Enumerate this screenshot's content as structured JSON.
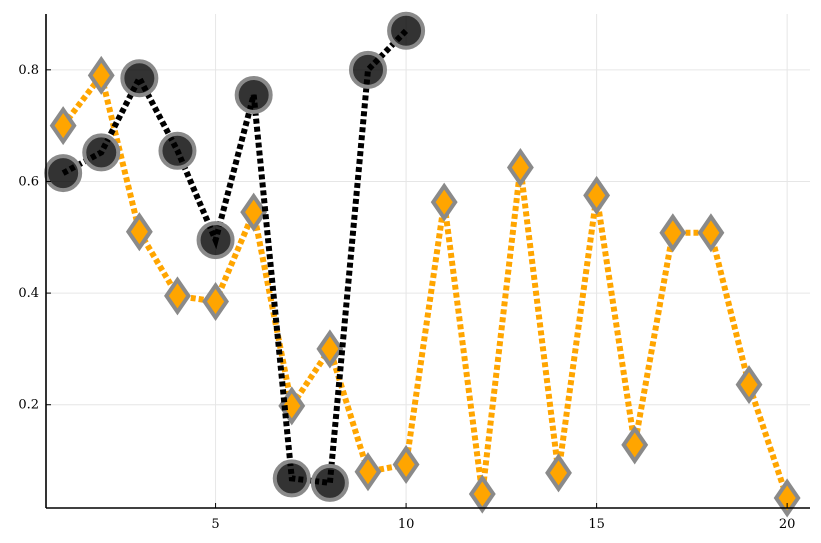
{
  "chart_data": {
    "type": "line",
    "title": "",
    "xlabel": "",
    "ylabel": "",
    "xlim": [
      0.55,
      20.6
    ],
    "ylim": [
      0.015,
      0.9
    ],
    "xticks": [
      5,
      10,
      15,
      20
    ],
    "yticks": [
      0.2,
      0.4,
      0.6,
      0.8
    ],
    "xtick_labels": [
      "5",
      "10",
      "15",
      "20"
    ],
    "ytick_labels": [
      "0.2",
      "0.4",
      "0.6",
      "0.8"
    ],
    "grid": true,
    "legend": "none",
    "series": [
      {
        "color": "#ffa500",
        "line_style": "dotted",
        "marker": "diamond",
        "x": [
          1,
          2,
          3,
          4,
          5,
          6,
          7,
          8,
          9,
          10,
          11,
          12,
          13,
          14,
          15,
          16,
          17,
          18,
          19,
          20
        ],
        "y": [
          0.7,
          0.79,
          0.51,
          0.395,
          0.385,
          0.545,
          0.198,
          0.3,
          0.08,
          0.093,
          0.563,
          0.04,
          0.625,
          0.078,
          0.575,
          0.128,
          0.508,
          0.508,
          0.236,
          0.033
        ]
      },
      {
        "color": "#000000",
        "line_style": "dotted",
        "marker": "circle",
        "x": [
          1,
          2,
          3,
          4,
          5,
          6,
          7,
          8,
          9,
          10
        ],
        "y": [
          0.615,
          0.652,
          0.785,
          0.655,
          0.495,
          0.755,
          0.068,
          0.06,
          0.8,
          0.87
        ]
      }
    ]
  }
}
